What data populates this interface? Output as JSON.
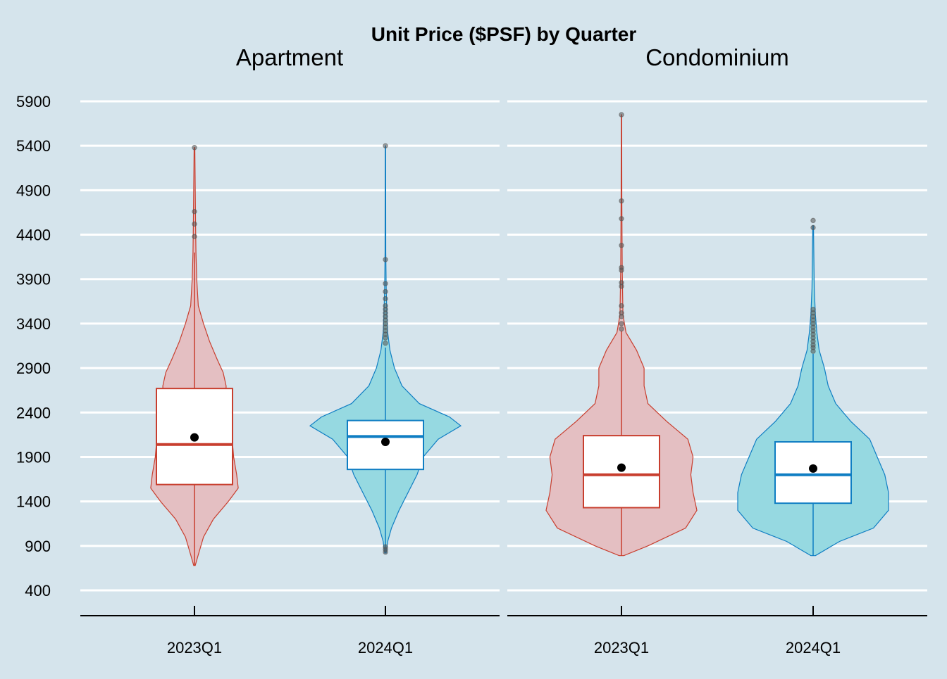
{
  "chart_data": {
    "type": "violin",
    "title": "Unit Price ($PSF) by Quarter",
    "xlabel": "",
    "ylabel": "",
    "y_ticks": [
      400,
      900,
      1400,
      1900,
      2400,
      2900,
      3400,
      3900,
      4400,
      4900,
      5400,
      5900
    ],
    "y_tick_labels": [
      "400",
      "900",
      "1400",
      "1900",
      "2400",
      "2900",
      "3400",
      "3900",
      "4400",
      "4900",
      "5400",
      "5900"
    ],
    "grid": "horizontal",
    "legend": "none",
    "colors": {
      "background": "#d5e4ec",
      "gridline": "#ffffff",
      "q2023_fill": "#e4bfc2",
      "q2023_line": "#c83e2e",
      "q2024_fill": "#96d9e1",
      "q2024_line": "#0f7ec3",
      "outlier": "#555555",
      "mean": "#000000",
      "axis": "#000000"
    },
    "panels": [
      {
        "name": "Apartment",
        "categories": [
          "2023Q1",
          "2024Q1"
        ],
        "groups": [
          {
            "category": "2023Q1",
            "color_key": "q2023",
            "min": 680,
            "max": 5380,
            "q1": 1590,
            "median": 2040,
            "q3": 2670,
            "mean": 2120,
            "whisker_low": 680,
            "whisker_high": 4200,
            "outliers": [
              4380,
              4520,
              4660,
              5380
            ],
            "density": [
              [
                680,
                0.01
              ],
              [
                800,
                0.05
              ],
              [
                1000,
                0.12
              ],
              [
                1200,
                0.25
              ],
              [
                1400,
                0.45
              ],
              [
                1550,
                0.58
              ],
              [
                1700,
                0.56
              ],
              [
                1900,
                0.52
              ],
              [
                2100,
                0.5
              ],
              [
                2300,
                0.45
              ],
              [
                2500,
                0.42
              ],
              [
                2700,
                0.42
              ],
              [
                2850,
                0.38
              ],
              [
                3000,
                0.3
              ],
              [
                3200,
                0.2
              ],
              [
                3400,
                0.12
              ],
              [
                3600,
                0.05
              ],
              [
                3900,
                0.03
              ],
              [
                4200,
                0.02
              ],
              [
                4500,
                0.015
              ],
              [
                5380,
                0.005
              ]
            ]
          },
          {
            "category": "2024Q1",
            "color_key": "q2024",
            "min": 820,
            "max": 5400,
            "q1": 1760,
            "median": 2130,
            "q3": 2310,
            "mean": 2070,
            "whisker_low": 820,
            "whisker_high": 3130,
            "outliers": [
              830,
              860,
              890,
              3180,
              3240,
              3280,
              3320,
              3360,
              3400,
              3440,
              3480,
              3520,
              3560,
              3600,
              3680,
              3760,
              3850,
              4120,
              5400
            ],
            "density": [
              [
                820,
                0.01
              ],
              [
                950,
                0.03
              ],
              [
                1100,
                0.08
              ],
              [
                1300,
                0.18
              ],
              [
                1500,
                0.3
              ],
              [
                1700,
                0.42
              ],
              [
                1900,
                0.5
              ],
              [
                2100,
                0.7
              ],
              [
                2250,
                1.0
              ],
              [
                2350,
                0.85
              ],
              [
                2500,
                0.45
              ],
              [
                2700,
                0.22
              ],
              [
                2900,
                0.12
              ],
              [
                3100,
                0.06
              ],
              [
                3300,
                0.03
              ],
              [
                3500,
                0.02
              ],
              [
                3800,
                0.01
              ],
              [
                4200,
                0.005
              ],
              [
                5400,
                0.003
              ]
            ]
          }
        ]
      },
      {
        "name": "Condominium",
        "categories": [
          "2023Q1",
          "2024Q1"
        ],
        "groups": [
          {
            "category": "2023Q1",
            "color_key": "q2023",
            "min": 790,
            "max": 5750,
            "q1": 1330,
            "median": 1700,
            "q3": 2140,
            "mean": 1780,
            "whisker_low": 790,
            "whisker_high": 3320,
            "outliers": [
              3340,
              3400,
              3480,
              3520,
              3600,
              3820,
              3860,
              4000,
              4030,
              4280,
              4580,
              4780,
              5750
            ],
            "density": [
              [
                790,
                0.03
              ],
              [
                900,
                0.35
              ],
              [
                1100,
                0.85
              ],
              [
                1300,
                1.0
              ],
              [
                1500,
                0.95
              ],
              [
                1700,
                0.92
              ],
              [
                1900,
                0.95
              ],
              [
                2100,
                0.88
              ],
              [
                2300,
                0.6
              ],
              [
                2500,
                0.35
              ],
              [
                2700,
                0.3
              ],
              [
                2900,
                0.3
              ],
              [
                3100,
                0.2
              ],
              [
                3300,
                0.06
              ],
              [
                3500,
                0.02
              ],
              [
                4000,
                0.01
              ],
              [
                4800,
                0.005
              ],
              [
                5750,
                0.003
              ]
            ]
          },
          {
            "category": "2024Q1",
            "color_key": "q2024",
            "min": 790,
            "max": 4560,
            "q1": 1380,
            "median": 1700,
            "q3": 2070,
            "mean": 1770,
            "whisker_low": 790,
            "whisker_high": 3060,
            "outliers": [
              3090,
              3130,
              3160,
              3200,
              3240,
              3280,
              3320,
              3360,
              3400,
              3440,
              3480,
              3520,
              3560,
              4480,
              4560
            ],
            "density": [
              [
                790,
                0.03
              ],
              [
                950,
                0.35
              ],
              [
                1100,
                0.8
              ],
              [
                1300,
                1.0
              ],
              [
                1500,
                1.0
              ],
              [
                1700,
                0.95
              ],
              [
                1900,
                0.85
              ],
              [
                2100,
                0.75
              ],
              [
                2300,
                0.5
              ],
              [
                2500,
                0.3
              ],
              [
                2700,
                0.2
              ],
              [
                2900,
                0.15
              ],
              [
                3100,
                0.08
              ],
              [
                3300,
                0.05
              ],
              [
                3500,
                0.03
              ],
              [
                3800,
                0.015
              ],
              [
                4500,
                0.005
              ]
            ]
          }
        ]
      }
    ]
  }
}
